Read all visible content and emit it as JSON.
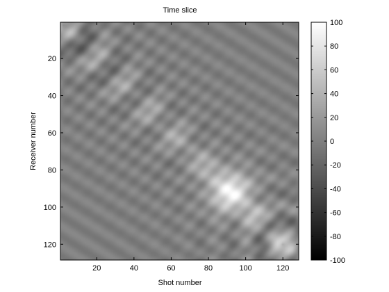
{
  "chart_data": {
    "type": "heatmap",
    "title": "Time slice",
    "xlabel": "Shot number",
    "ylabel": "Receiver number",
    "xlim": [
      0.5,
      128.5
    ],
    "ylim": [
      0.5,
      128.5
    ],
    "y_reversed": true,
    "x_ticks": [
      20,
      40,
      60,
      80,
      100,
      120
    ],
    "y_ticks": [
      20,
      40,
      60,
      80,
      100,
      120
    ],
    "colormap": "gray",
    "color_range": [
      -100,
      100
    ],
    "colorbar_ticks": [
      100,
      80,
      60,
      40,
      20,
      0,
      -20,
      -40,
      -60,
      -80,
      -100
    ],
    "grid_size": [
      128,
      128
    ],
    "background_value": 0,
    "features": [
      {
        "kind": "diagonal-band",
        "from": [
          1,
          1
        ],
        "to": [
          128,
          128
        ],
        "peak_value": 60,
        "note": "bright ridge along receiver ≈ shot"
      },
      {
        "kind": "bright-spot",
        "center": [
          92,
          92
        ],
        "peak_value": 60
      },
      {
        "kind": "concentric-arcs",
        "center": [
          2,
          2
        ],
        "amplitude": 35
      },
      {
        "kind": "concentric-arcs",
        "center": [
          120,
          120
        ],
        "amplitude": 35
      },
      {
        "kind": "parallel-striations",
        "direction": "diagonal",
        "amplitude": 15
      }
    ]
  }
}
